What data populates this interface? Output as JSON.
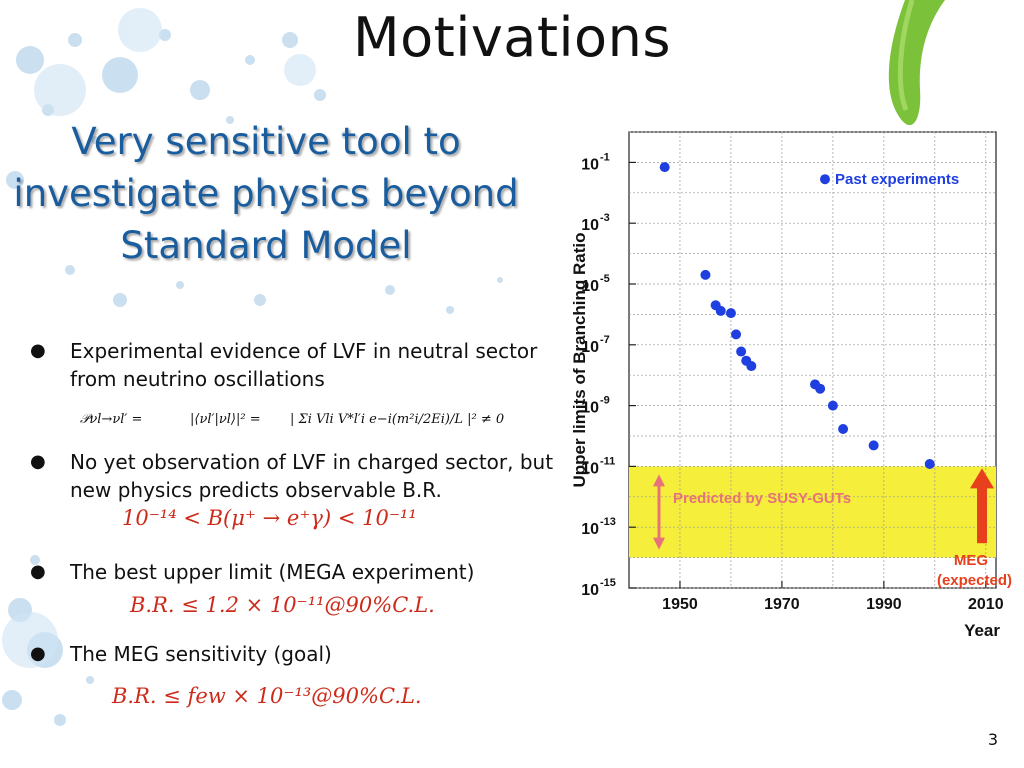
{
  "slide": {
    "title": "Motivations",
    "subtitle_lines": [
      "Very sensitive tool to",
      "investigate physics beyond",
      "Standard Model"
    ],
    "page_number": "3"
  },
  "bullets": [
    {
      "lines": [
        "Experimental evidence of LVF in neutral sector",
        "from neutrino oscillations"
      ]
    },
    {
      "lines": [
        "No yet observation of LVF in charged sector, but",
        "new physics predicts observable B.R."
      ]
    },
    {
      "lines": [
        "The best upper limit (MEGA experiment)"
      ]
    },
    {
      "lines": [
        "The MEG sensitivity (goal)"
      ]
    }
  ],
  "formulas": {
    "oscillation_lhs": "𝒫νl→νl′ =",
    "oscillation_mid": "|⟨νl′|νl⟩|² =",
    "oscillation_rhs": "| Σi Vli V*l′i e−i(m²i/2Ei)/L |² ≠ 0",
    "susy_range": "10⁻¹⁴ < B(μ⁺ → e⁺γ) < 10⁻¹¹",
    "mega_limit": "B.R. ≤ 1.2 × 10⁻¹¹@90%C.L.",
    "meg_goal": "B.R. ≤ few × 10⁻¹³@90%C.L."
  },
  "chart_data": {
    "type": "scatter",
    "title": "",
    "xlabel": "Year",
    "ylabel": "Upper limits of Branching Ratio",
    "y_scale": "log",
    "xlim": [
      1940,
      2012
    ],
    "ylim": [
      1e-15,
      1
    ],
    "x_ticks": [
      1950,
      1970,
      1990,
      2010
    ],
    "y_tick_labels": [
      {
        "base": "10",
        "exp": "-1",
        "value": 0.1
      },
      {
        "base": "10",
        "exp": "-3",
        "value": 0.001
      },
      {
        "base": "10",
        "exp": "-5",
        "value": 1e-05
      },
      {
        "base": "10",
        "exp": "-7",
        "value": 1e-07
      },
      {
        "base": "10",
        "exp": "-9",
        "value": 1e-09
      },
      {
        "base": "10",
        "exp": "-11",
        "value": 1e-11
      },
      {
        "base": "10",
        "exp": "-13",
        "value": 1e-13
      },
      {
        "base": "10",
        "exp": "-15",
        "value": 1e-15
      }
    ],
    "grid": true,
    "legend": {
      "placement": "top-right",
      "entries": [
        "Past experiments"
      ]
    },
    "series": [
      {
        "name": "Past experiments",
        "color": "#1f3fe0",
        "points": [
          {
            "x": 1947,
            "y": 0.07
          },
          {
            "x": 1955,
            "y": 2e-05
          },
          {
            "x": 1957,
            "y": 2e-06
          },
          {
            "x": 1958,
            "y": 1.3e-06
          },
          {
            "x": 1960,
            "y": 1.1e-06
          },
          {
            "x": 1961,
            "y": 2.2e-07
          },
          {
            "x": 1962,
            "y": 6e-08
          },
          {
            "x": 1963,
            "y": 3e-08
          },
          {
            "x": 1964,
            "y": 2e-08
          },
          {
            "x": 1976.5,
            "y": 5e-09
          },
          {
            "x": 1977.5,
            "y": 3.6e-09
          },
          {
            "x": 1980,
            "y": 1e-09
          },
          {
            "x": 1982,
            "y": 1.7e-10
          },
          {
            "x": 1988,
            "y": 4.9e-11
          },
          {
            "x": 1999,
            "y": 1.2e-11
          }
        ]
      }
    ],
    "annotations": {
      "susy_band": {
        "label": "Predicted by SUSY-GUTs",
        "y_low": 1e-14,
        "y_high": 1e-11,
        "color": "#f5ee3a",
        "arrow_color": "#e8727a"
      },
      "meg_expected": {
        "label_lines": [
          "MEG",
          "(expected)"
        ],
        "color": "#e8401c"
      }
    }
  }
}
